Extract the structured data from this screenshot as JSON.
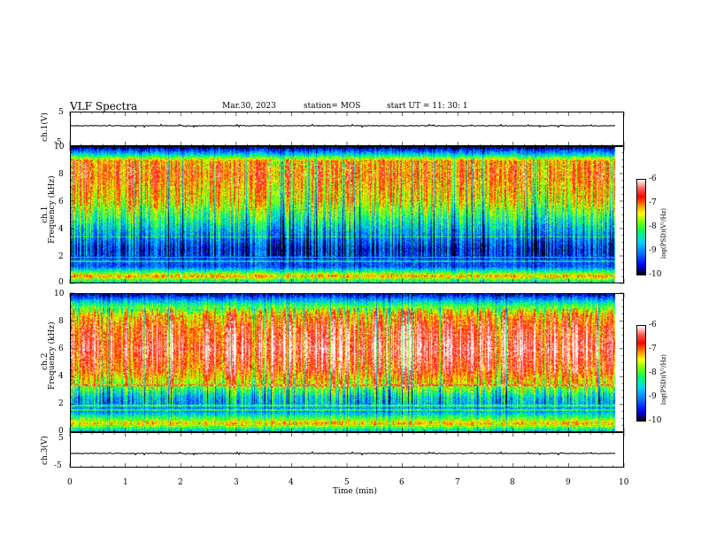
{
  "header": {
    "title": "VLF Spectra",
    "date": "Mar.30, 2023",
    "station": "station= MOS",
    "start_time": "start  UT =   11: 30: 1"
  },
  "panels": {
    "ch1_waveform": {
      "ylabel": "ch.1(V)",
      "ticks": [
        "5",
        "-5"
      ]
    },
    "ch1_spectrum": {
      "ylabel_top": "ch.1",
      "ylabel_bottom": "Frequency (kHz)",
      "ticks": [
        "0",
        "2",
        "4",
        "6",
        "8",
        "10"
      ]
    },
    "ch2_spectrum": {
      "ylabel_top": "ch.2",
      "ylabel_bottom": "Frequency (kHz)",
      "ticks": [
        "0",
        "2",
        "4",
        "6",
        "8",
        "10"
      ]
    },
    "ch3_waveform": {
      "ylabel": "ch.3(V)",
      "ticks": [
        "5",
        "-5"
      ]
    }
  },
  "colorbar": {
    "label": "log(PSD)(V²/Hz)",
    "ticks": [
      "-6",
      "-7",
      "-8",
      "-9",
      "-10"
    ]
  },
  "chart_data": {
    "type": "heatmap",
    "title": "VLF Spectra",
    "xlabel": "Time (min)",
    "x_ticks": [
      "0",
      "1",
      "2",
      "3",
      "4",
      "5",
      "6",
      "7",
      "8",
      "9",
      "10"
    ],
    "xlim": [
      0,
      10
    ],
    "data_end_min": 9.85,
    "ylim_freq_khz": [
      0,
      10
    ],
    "ylim_waveform_v": [
      -5,
      5
    ],
    "colorbar_range": [
      -10,
      -6
    ],
    "channels": [
      {
        "name": "ch.1",
        "band_profile_khz": [
          [
            0,
            -8.6
          ],
          [
            0.5,
            -7.1
          ],
          [
            1.2,
            -9.2
          ],
          [
            2.5,
            -9.4
          ],
          [
            4,
            -8.6
          ],
          [
            6,
            -7.4
          ],
          [
            8,
            -6.9
          ],
          [
            9,
            -7.1
          ],
          [
            9.5,
            -8.6
          ],
          [
            10,
            -9.8
          ]
        ]
      },
      {
        "name": "ch.2",
        "band_profile_khz": [
          [
            0,
            -8.7
          ],
          [
            0.6,
            -7.2
          ],
          [
            1.5,
            -8.9
          ],
          [
            2.5,
            -8.5
          ],
          [
            3.5,
            -7.4
          ],
          [
            4.5,
            -6.7
          ],
          [
            6,
            -6.3
          ],
          [
            7.5,
            -6.6
          ],
          [
            8.5,
            -7.1
          ],
          [
            9.3,
            -8.2
          ],
          [
            10,
            -9.6
          ]
        ]
      }
    ]
  }
}
